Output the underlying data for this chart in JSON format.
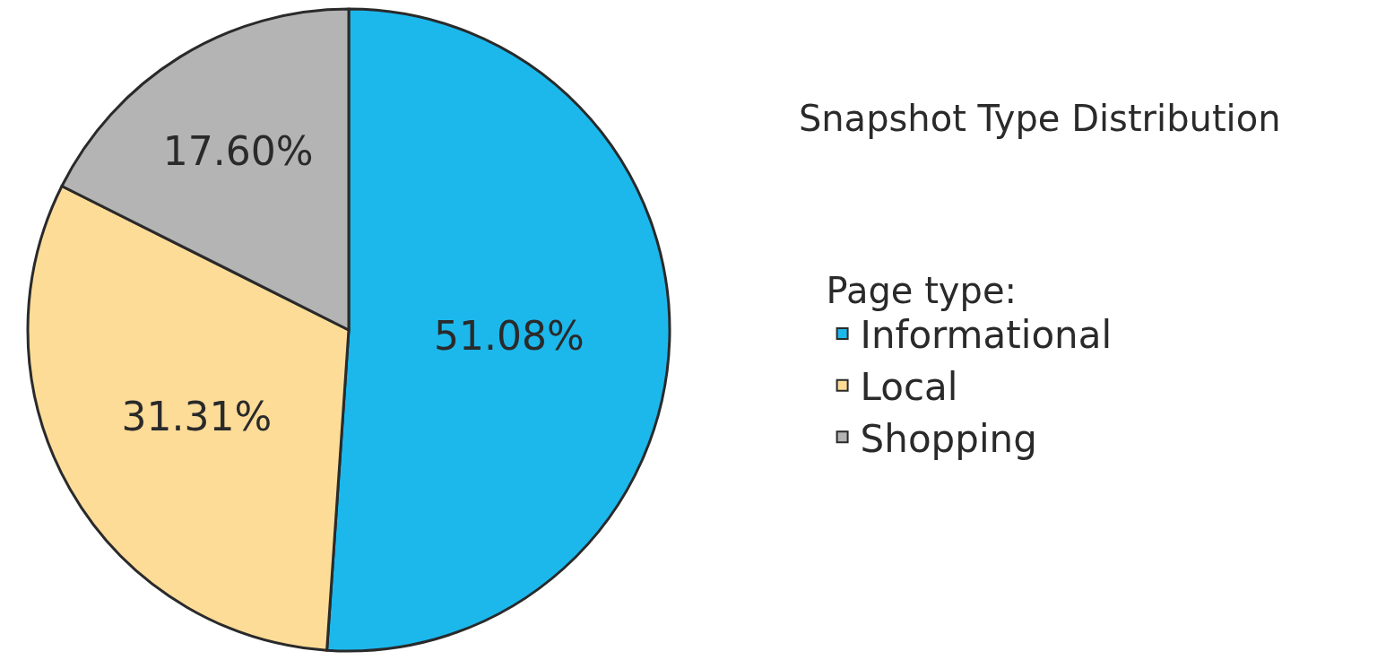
{
  "chart_data": {
    "type": "pie",
    "title": "Snapshot Type Distribution",
    "legend_title": "Page type:",
    "categories": [
      "Informational",
      "Local",
      "Shopping"
    ],
    "values": [
      51.08,
      31.31,
      17.6
    ],
    "value_labels": [
      "51.08%",
      "31.31%",
      "17.60%"
    ],
    "colors": [
      "#1cb8ec",
      "#fddc98",
      "#b3b4b3"
    ],
    "legend": "right"
  }
}
